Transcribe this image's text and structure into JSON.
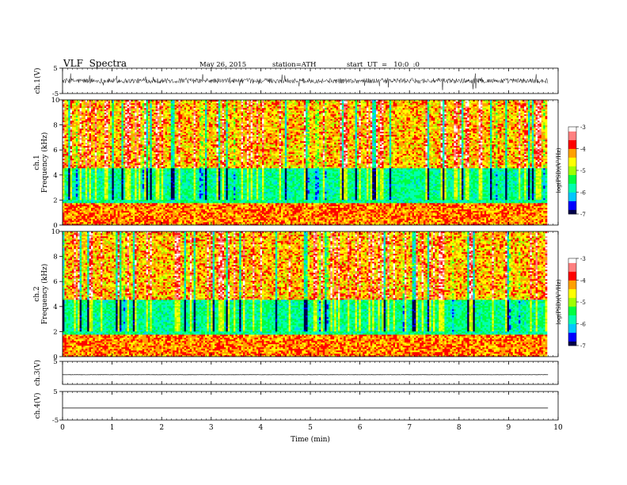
{
  "header": {
    "title": "VLF  Spectra",
    "date": "May 26, 2015",
    "station": "station=ATH",
    "start": "start  UT  =   10:0  :0"
  },
  "chart_data": {
    "type": "heatmap",
    "xlabel": "Time  (min)",
    "xlim": [
      0,
      10
    ],
    "xticks": [
      "0",
      "1",
      "2",
      "3",
      "4",
      "5",
      "6",
      "7",
      "8",
      "9",
      "10"
    ],
    "data_end_min": 9.8,
    "panels": [
      {
        "id": "ch1-wave",
        "type": "line",
        "ylabel": "ch.1(V)",
        "ylim": [
          -5,
          5
        ],
        "yticks": [
          "5",
          "-5"
        ],
        "offset": 0.0,
        "noise_amplitude": 1.0
      },
      {
        "id": "ch1-spec",
        "type": "heatmap",
        "ylabel_top": "ch.1",
        "ylabel": "Frequency  (kHz)",
        "ylim": [
          0,
          10
        ],
        "yticks": [
          "0",
          "2",
          "4",
          "6",
          "8",
          "10"
        ],
        "colorbar": {
          "label": "log(PSD)(V²/Hz)",
          "range": [
            -7,
            -3
          ],
          "ticks": [
            "-3",
            "-4",
            "-5",
            "-6",
            "-7"
          ]
        }
      },
      {
        "id": "ch2-spec",
        "type": "heatmap",
        "ylabel_top": "ch.2",
        "ylabel": "Frequency  (kHz)",
        "ylim": [
          0,
          10
        ],
        "yticks": [
          "0",
          "2",
          "4",
          "6",
          "8",
          "10"
        ],
        "colorbar": {
          "label": "log(PSD)(V²/Hz)",
          "range": [
            -7,
            -3
          ],
          "ticks": [
            "-3",
            "-4",
            "-5",
            "-6",
            "-7"
          ]
        }
      },
      {
        "id": "ch3-wave",
        "type": "line",
        "ylabel": "ch.3(V)",
        "ylim": [
          -5,
          5
        ],
        "yticks": [
          "5",
          ""
        ],
        "offset": -0.8,
        "noise_amplitude": 0.05
      },
      {
        "id": "ch4-wave",
        "type": "line",
        "ylabel": "ch.4(V)",
        "ylim": [
          -5,
          5
        ],
        "yticks": [
          "5",
          "-5"
        ],
        "offset": -0.8,
        "noise_amplitude": 0.0
      }
    ],
    "colorscale": [
      "#00004a",
      "#0000ff",
      "#00c8ff",
      "#00ffb0",
      "#00ff40",
      "#a0ff00",
      "#ffff00",
      "#ffa000",
      "#ff0000",
      "#ff8080",
      "#ffffff"
    ]
  }
}
